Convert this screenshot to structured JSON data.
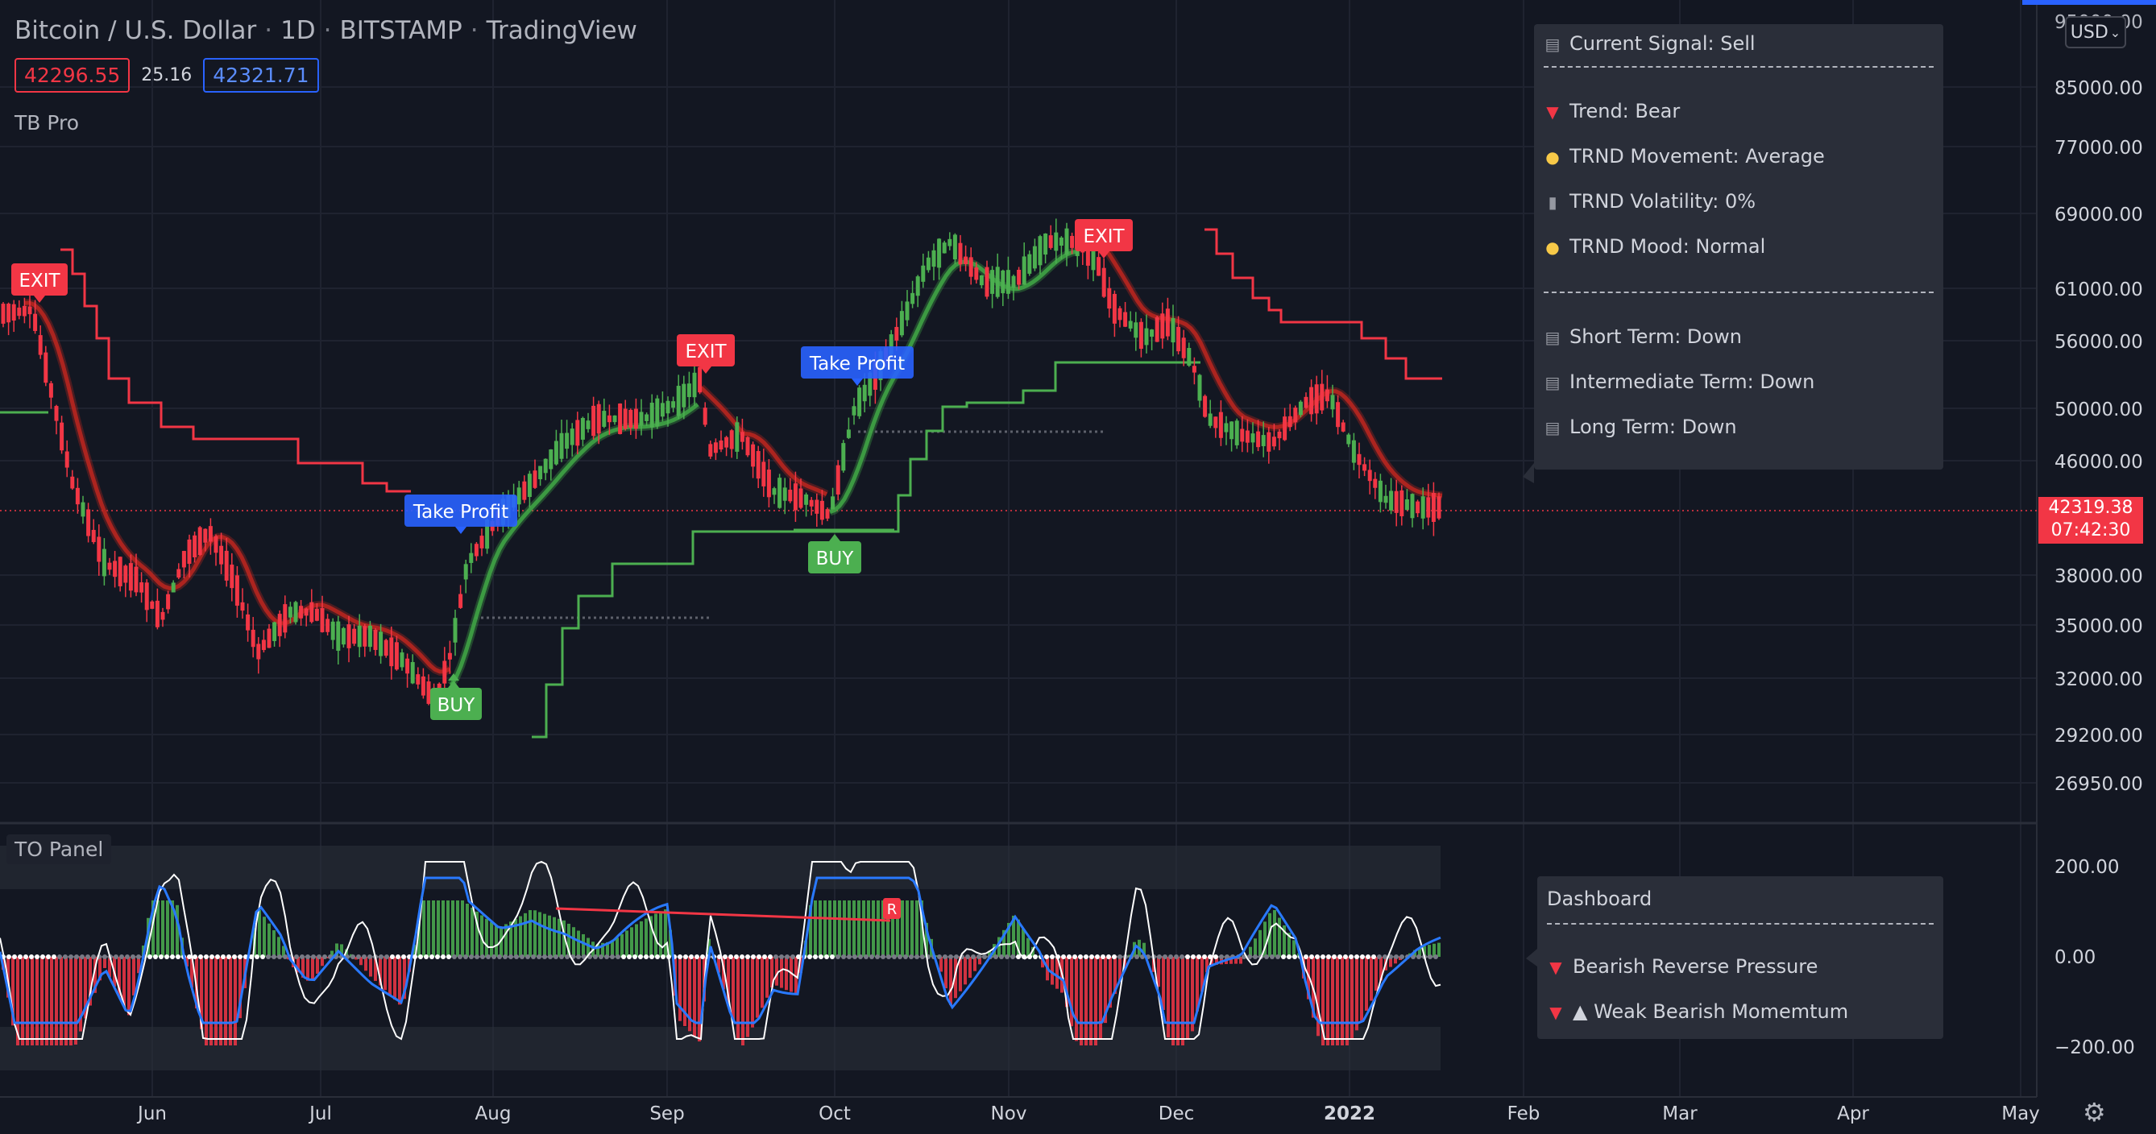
{
  "header": {
    "symbol": "Bitcoin / U.S. Dollar",
    "interval": "1D",
    "exchange": "BITSTAMP",
    "source": "TradingView",
    "bid": "42296.55",
    "spread": "25.16",
    "ask": "42321.71",
    "indicator_main": "TB Pro",
    "indicator_sub": "TO Panel",
    "currency_button": "USD"
  },
  "price_scale": {
    "top_partial": "95000.00",
    "labels": [
      "85000.00",
      "77000.00",
      "69000.00",
      "61000.00",
      "56000.00",
      "50000.00",
      "46000.00",
      "38000.00",
      "35000.00",
      "32000.00",
      "29200.00",
      "26950.00"
    ],
    "last_price": "42319.38",
    "countdown": "07:42:30"
  },
  "sub_scale": {
    "labels": [
      "200.00",
      "0.00",
      "−200.00"
    ]
  },
  "time_axis": {
    "labels": [
      "Jun",
      "Jul",
      "Aug",
      "Sep",
      "Oct",
      "Nov",
      "Dec",
      "2022",
      "Feb",
      "Mar",
      "Apr",
      "May"
    ]
  },
  "signals": {
    "exit": "EXIT",
    "take_profit": "Take Profit",
    "buy": "BUY",
    "reversal": "R"
  },
  "signal_panel": {
    "current_signal": "Current Signal: Sell",
    "trend": "Trend: Bear",
    "movement": "TRND Movement: Average",
    "volatility": "TRND Volatility: 0%",
    "mood": "TRND Mood: Normal",
    "short_term": "Short Term: Down",
    "intermediate_term": "Intermediate Term: Down",
    "long_term": "Long Term: Down"
  },
  "dashboard": {
    "title": "Dashboard",
    "line1": "Bearish Reverse Pressure",
    "line2": "▲ Weak Bearish Momemtum"
  },
  "colors": {
    "background": "#131722",
    "bull": "#4caf50",
    "bear": "#f23645",
    "accent_blue": "#2962ff",
    "panel": "#2a2e39"
  }
}
